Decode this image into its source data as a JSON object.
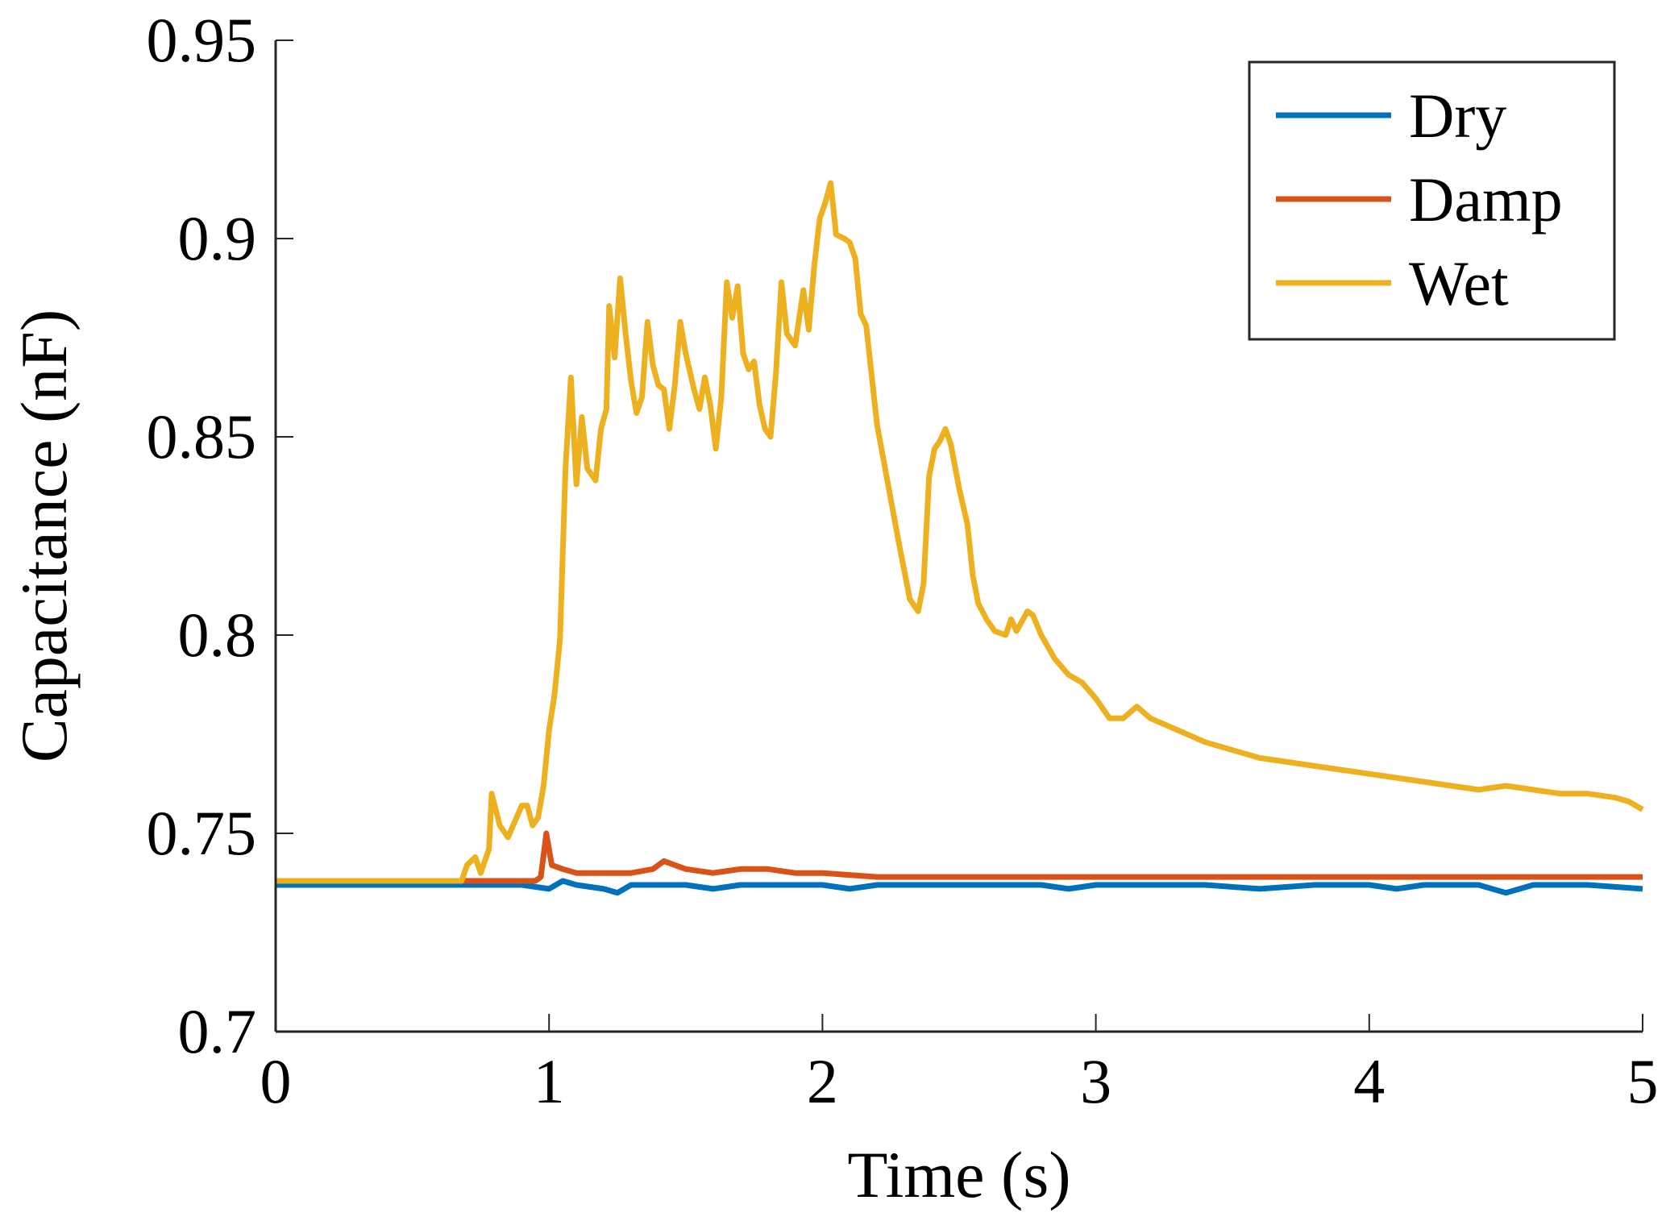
{
  "chart_data": {
    "type": "line",
    "title": "",
    "xlabel": "Time (s)",
    "ylabel": "Capacitance (nF)",
    "xlim": [
      0,
      5
    ],
    "ylim": [
      0.7,
      0.95
    ],
    "xticks": [
      "0",
      "1",
      "2",
      "3",
      "4",
      "5"
    ],
    "xtick_values": [
      0,
      1,
      2,
      3,
      4,
      5
    ],
    "yticks": [
      "0.7",
      "0.75",
      "0.8",
      "0.85",
      "0.9",
      "0.95"
    ],
    "ytick_values": [
      0.7,
      0.75,
      0.8,
      0.85,
      0.9,
      0.95
    ],
    "grid": false,
    "legend_position": "top-right",
    "series": [
      {
        "name": "Dry",
        "color": "#0072BD",
        "x": [
          0,
          0.1,
          0.2,
          0.3,
          0.4,
          0.5,
          0.6,
          0.7,
          0.8,
          0.9,
          1.0,
          1.05,
          1.1,
          1.2,
          1.25,
          1.3,
          1.5,
          1.6,
          1.7,
          1.8,
          2.0,
          2.1,
          2.2,
          2.4,
          2.6,
          2.8,
          2.9,
          3.0,
          3.2,
          3.4,
          3.6,
          3.8,
          4.0,
          4.1,
          4.2,
          4.4,
          4.5,
          4.6,
          4.8,
          5.0
        ],
        "y": [
          0.737,
          0.737,
          0.737,
          0.737,
          0.737,
          0.737,
          0.737,
          0.737,
          0.737,
          0.737,
          0.736,
          0.738,
          0.737,
          0.736,
          0.735,
          0.737,
          0.737,
          0.736,
          0.737,
          0.737,
          0.737,
          0.736,
          0.737,
          0.737,
          0.737,
          0.737,
          0.736,
          0.737,
          0.737,
          0.737,
          0.736,
          0.737,
          0.737,
          0.736,
          0.737,
          0.737,
          0.735,
          0.737,
          0.737,
          0.736
        ]
      },
      {
        "name": "Damp",
        "color": "#D95319",
        "x": [
          0,
          0.2,
          0.4,
          0.6,
          0.8,
          0.95,
          0.97,
          0.99,
          1.01,
          1.05,
          1.1,
          1.2,
          1.3,
          1.38,
          1.42,
          1.5,
          1.6,
          1.7,
          1.8,
          1.9,
          2.0,
          2.2,
          2.4,
          2.6,
          2.8,
          3.0,
          3.2,
          3.4,
          3.6,
          3.8,
          4.0,
          4.2,
          4.4,
          4.6,
          4.8,
          5.0
        ],
        "y": [
          0.738,
          0.738,
          0.738,
          0.738,
          0.738,
          0.738,
          0.739,
          0.75,
          0.742,
          0.741,
          0.74,
          0.74,
          0.74,
          0.741,
          0.743,
          0.741,
          0.74,
          0.741,
          0.741,
          0.74,
          0.74,
          0.739,
          0.739,
          0.739,
          0.739,
          0.739,
          0.739,
          0.739,
          0.739,
          0.739,
          0.739,
          0.739,
          0.739,
          0.739,
          0.739,
          0.739
        ]
      },
      {
        "name": "Wet",
        "color": "#EDB120",
        "x": [
          0,
          0.2,
          0.4,
          0.6,
          0.68,
          0.7,
          0.73,
          0.75,
          0.78,
          0.79,
          0.82,
          0.85,
          0.9,
          0.92,
          0.94,
          0.96,
          0.98,
          1.0,
          1.02,
          1.04,
          1.06,
          1.08,
          1.1,
          1.12,
          1.14,
          1.17,
          1.19,
          1.21,
          1.22,
          1.24,
          1.26,
          1.28,
          1.3,
          1.32,
          1.34,
          1.36,
          1.38,
          1.4,
          1.42,
          1.44,
          1.46,
          1.48,
          1.5,
          1.53,
          1.55,
          1.57,
          1.59,
          1.61,
          1.63,
          1.65,
          1.67,
          1.69,
          1.71,
          1.73,
          1.75,
          1.77,
          1.79,
          1.81,
          1.83,
          1.85,
          1.87,
          1.9,
          1.93,
          1.95,
          1.97,
          1.99,
          2.01,
          2.03,
          2.05,
          2.08,
          2.1,
          2.12,
          2.14,
          2.16,
          2.2,
          2.24,
          2.28,
          2.32,
          2.35,
          2.37,
          2.39,
          2.41,
          2.43,
          2.45,
          2.47,
          2.5,
          2.53,
          2.55,
          2.57,
          2.6,
          2.63,
          2.67,
          2.69,
          2.71,
          2.75,
          2.77,
          2.8,
          2.85,
          2.9,
          2.95,
          3.0,
          3.05,
          3.1,
          3.15,
          3.2,
          3.3,
          3.4,
          3.5,
          3.6,
          3.7,
          3.8,
          3.9,
          4.0,
          4.1,
          4.2,
          4.3,
          4.4,
          4.5,
          4.6,
          4.7,
          4.8,
          4.9,
          4.95,
          5.0
        ],
        "y": [
          0.738,
          0.738,
          0.738,
          0.738,
          0.738,
          0.742,
          0.744,
          0.74,
          0.746,
          0.76,
          0.752,
          0.749,
          0.757,
          0.757,
          0.752,
          0.754,
          0.762,
          0.776,
          0.785,
          0.799,
          0.842,
          0.865,
          0.838,
          0.855,
          0.842,
          0.839,
          0.852,
          0.857,
          0.883,
          0.87,
          0.89,
          0.876,
          0.864,
          0.856,
          0.86,
          0.879,
          0.868,
          0.863,
          0.862,
          0.852,
          0.863,
          0.879,
          0.871,
          0.862,
          0.857,
          0.865,
          0.858,
          0.847,
          0.86,
          0.889,
          0.88,
          0.888,
          0.871,
          0.867,
          0.869,
          0.858,
          0.852,
          0.85,
          0.866,
          0.889,
          0.876,
          0.873,
          0.887,
          0.877,
          0.893,
          0.905,
          0.909,
          0.914,
          0.901,
          0.9,
          0.899,
          0.895,
          0.881,
          0.878,
          0.853,
          0.838,
          0.823,
          0.809,
          0.806,
          0.813,
          0.84,
          0.847,
          0.849,
          0.852,
          0.848,
          0.837,
          0.828,
          0.815,
          0.808,
          0.804,
          0.801,
          0.8,
          0.804,
          0.801,
          0.806,
          0.805,
          0.8,
          0.794,
          0.79,
          0.788,
          0.784,
          0.779,
          0.779,
          0.782,
          0.779,
          0.776,
          0.773,
          0.771,
          0.769,
          0.768,
          0.767,
          0.766,
          0.765,
          0.764,
          0.763,
          0.762,
          0.761,
          0.762,
          0.761,
          0.76,
          0.76,
          0.759,
          0.758,
          0.756
        ]
      }
    ]
  }
}
